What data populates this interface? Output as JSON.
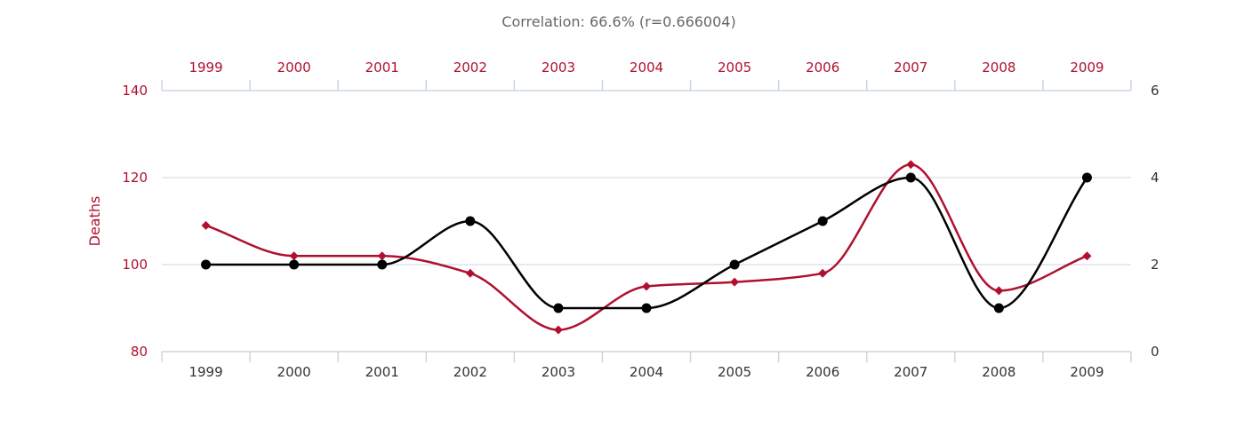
{
  "chart_data": {
    "type": "line",
    "title": "Correlation: 66.6% (r=0.666004)",
    "categories": [
      "1999",
      "2000",
      "2001",
      "2002",
      "2003",
      "2004",
      "2005",
      "2006",
      "2007",
      "2008",
      "2009"
    ],
    "ylabel_left": "Deaths",
    "ylim_left": [
      80,
      140
    ],
    "yticks_left": [
      "80",
      "100",
      "120",
      "140"
    ],
    "ylim_right": [
      0,
      6
    ],
    "yticks_right": [
      "0",
      "2",
      "4",
      "6"
    ],
    "grid": true,
    "series": [
      {
        "axis": "left",
        "color": "#b01030",
        "marker": "diamond",
        "values": [
          109,
          102,
          102,
          98,
          85,
          95,
          96,
          98,
          123,
          94,
          102
        ]
      },
      {
        "axis": "right",
        "color": "#000000",
        "marker": "circle",
        "values": [
          2,
          2,
          2,
          3,
          1,
          1,
          2,
          3,
          4,
          1,
          4
        ]
      }
    ]
  }
}
